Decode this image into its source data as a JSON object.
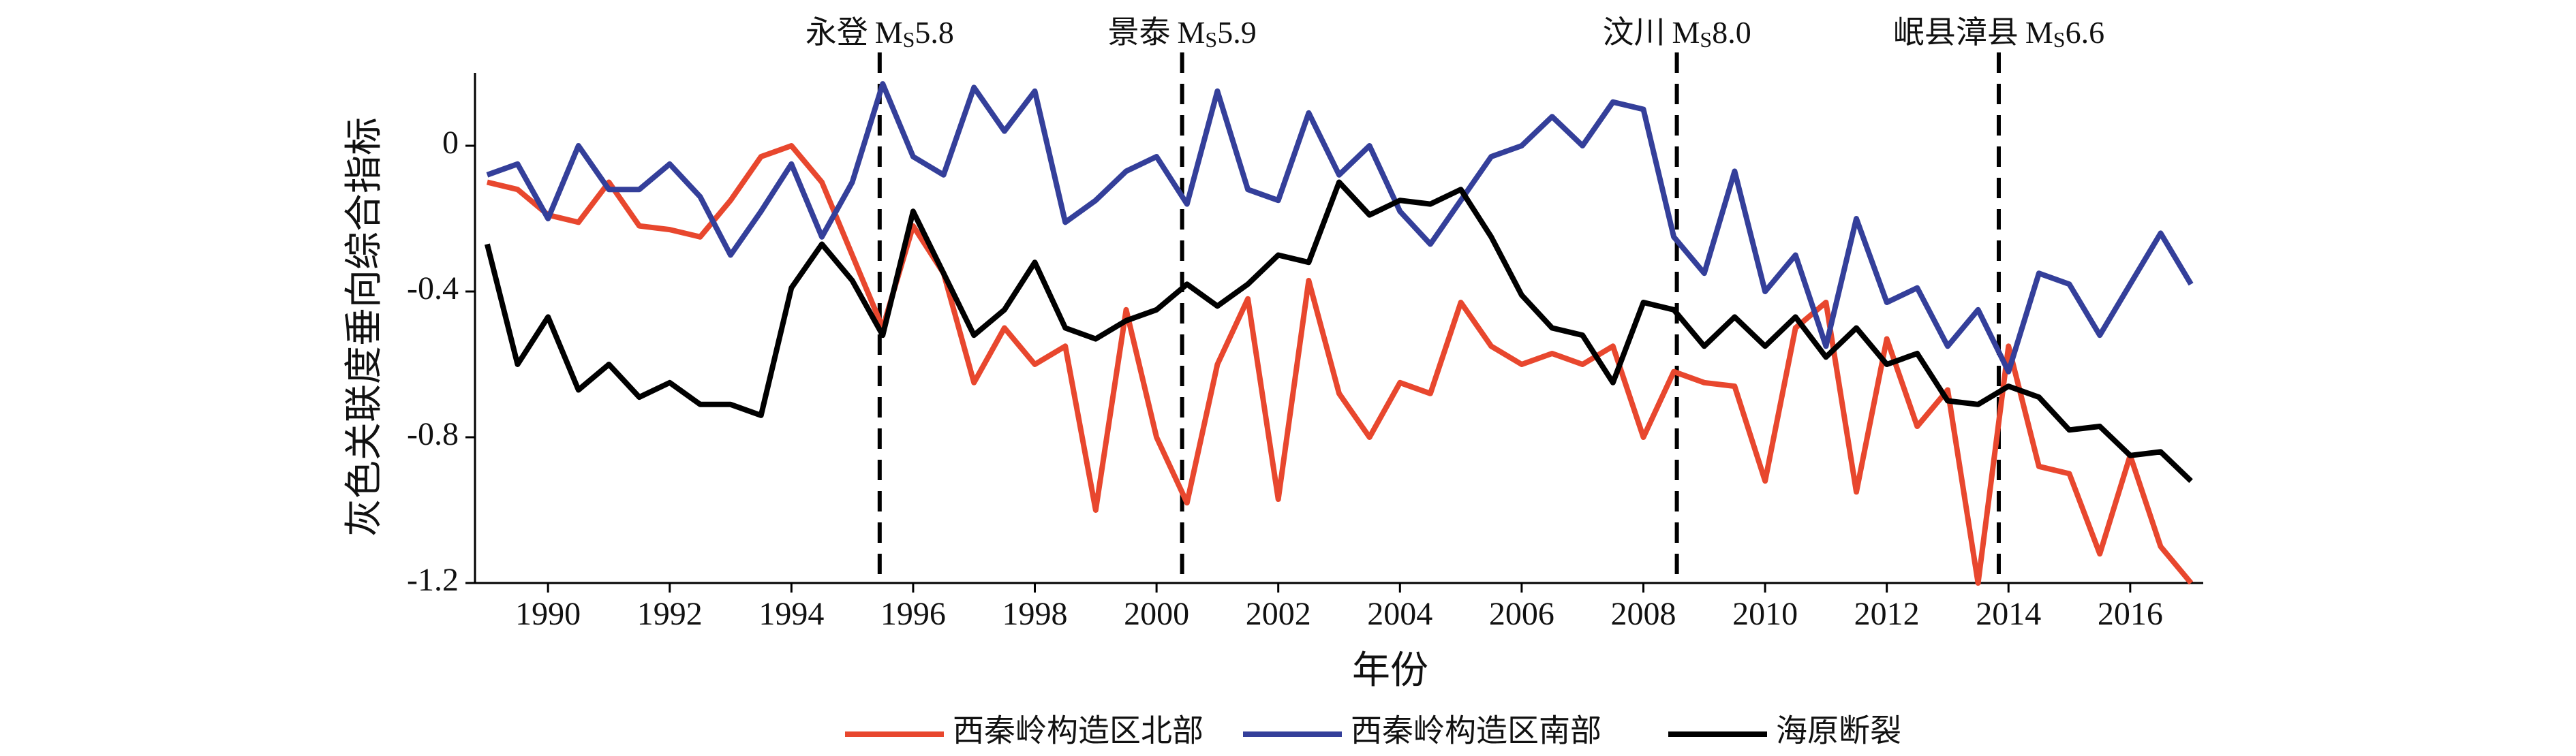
{
  "chart_data": {
    "type": "line",
    "xlabel": "年份",
    "ylabel": "灰色关联度垂向综合指标",
    "x": [
      1989,
      1989.5,
      1990,
      1990.5,
      1991,
      1991.5,
      1992,
      1992.5,
      1993,
      1993.5,
      1994,
      1994.5,
      1995,
      1995.5,
      1996,
      1996.5,
      1997,
      1997.5,
      1998,
      1998.5,
      1999,
      1999.5,
      2000,
      2000.5,
      2001,
      2001.5,
      2002,
      2002.5,
      2003,
      2003.5,
      2004,
      2004.5,
      2005,
      2005.5,
      2006,
      2006.5,
      2007,
      2007.5,
      2008,
      2008.5,
      2009,
      2009.5,
      2010,
      2010.5,
      2011,
      2011.5,
      2012,
      2012.5,
      2013,
      2013.5,
      2014,
      2014.5,
      2015,
      2015.5,
      2016,
      2016.5,
      2017
    ],
    "series": [
      {
        "name": "西秦岭构造区北部",
        "color": "#e8472e",
        "values": [
          -0.1,
          -0.12,
          -0.19,
          -0.21,
          -0.1,
          -0.22,
          -0.23,
          -0.25,
          -0.15,
          -0.03,
          0.0,
          -0.1,
          -0.3,
          -0.5,
          -0.22,
          -0.35,
          -0.65,
          -0.5,
          -0.6,
          -0.55,
          -1.0,
          -0.45,
          -0.8,
          -0.98,
          -0.6,
          -0.42,
          -0.97,
          -0.37,
          -0.68,
          -0.8,
          -0.65,
          -0.68,
          -0.43,
          -0.55,
          -0.6,
          -0.57,
          -0.6,
          -0.55,
          -0.8,
          -0.62,
          -0.65,
          -0.66,
          -0.92,
          -0.5,
          -0.43,
          -0.95,
          -0.53,
          -0.77,
          -0.67,
          -1.2,
          -0.55,
          -0.88,
          -0.9,
          -1.12,
          -0.85,
          -1.1,
          -1.2
        ]
      },
      {
        "name": "西秦岭构造区南部",
        "color": "#343f9a",
        "values": [
          -0.08,
          -0.05,
          -0.2,
          0.0,
          -0.12,
          -0.12,
          -0.05,
          -0.14,
          -0.3,
          -0.18,
          -0.05,
          -0.25,
          -0.1,
          0.17,
          -0.03,
          -0.08,
          0.16,
          0.04,
          0.15,
          -0.21,
          -0.15,
          -0.07,
          -0.03,
          -0.16,
          0.15,
          -0.12,
          -0.15,
          0.09,
          -0.08,
          0.0,
          -0.18,
          -0.27,
          -0.15,
          -0.03,
          0.0,
          0.08,
          0.0,
          0.12,
          0.1,
          -0.25,
          -0.35,
          -0.07,
          -0.4,
          -0.3,
          -0.55,
          -0.2,
          -0.43,
          -0.39,
          -0.55,
          -0.45,
          -0.62,
          -0.35,
          -0.38,
          -0.52,
          -0.38,
          -0.24,
          -0.38
        ]
      },
      {
        "name": "海原断裂",
        "color": "#000000",
        "values": [
          -0.27,
          -0.6,
          -0.47,
          -0.67,
          -0.6,
          -0.69,
          -0.65,
          -0.71,
          -0.71,
          -0.74,
          -0.39,
          -0.27,
          -0.37,
          -0.52,
          -0.18,
          -0.35,
          -0.52,
          -0.45,
          -0.32,
          -0.5,
          -0.53,
          -0.48,
          -0.45,
          -0.38,
          -0.44,
          -0.38,
          -0.3,
          -0.32,
          -0.1,
          -0.19,
          -0.15,
          -0.16,
          -0.12,
          -0.25,
          -0.41,
          -0.5,
          -0.52,
          -0.65,
          -0.43,
          -0.45,
          -0.55,
          -0.47,
          -0.55,
          -0.47,
          -0.58,
          -0.5,
          -0.6,
          -0.57,
          -0.7,
          -0.71,
          -0.66,
          -0.69,
          -0.78,
          -0.77,
          -0.85,
          -0.84,
          -0.92
        ]
      }
    ],
    "events": [
      {
        "x": 1995.45,
        "place": "永登",
        "scale": "M",
        "sub": "S",
        "magnitude": "5.8"
      },
      {
        "x": 2000.42,
        "place": "景泰",
        "scale": "M",
        "sub": "S",
        "magnitude": "5.9"
      },
      {
        "x": 2008.55,
        "place": "汶川",
        "scale": "M",
        "sub": "S",
        "magnitude": "8.0"
      },
      {
        "x": 2013.84,
        "place": "岷县漳县",
        "scale": "M",
        "sub": "S",
        "magnitude": "6.6"
      }
    ],
    "xlim": [
      1988.8,
      2017.2
    ],
    "ylim": [
      -1.2,
      0.2
    ],
    "xticks": [
      1990,
      1992,
      1994,
      1996,
      1998,
      2000,
      2002,
      2004,
      2006,
      2008,
      2010,
      2012,
      2014,
      2016
    ],
    "yticks": [
      -1.2,
      -0.8,
      -0.4,
      0
    ],
    "grid": false,
    "legend": "bottom"
  }
}
